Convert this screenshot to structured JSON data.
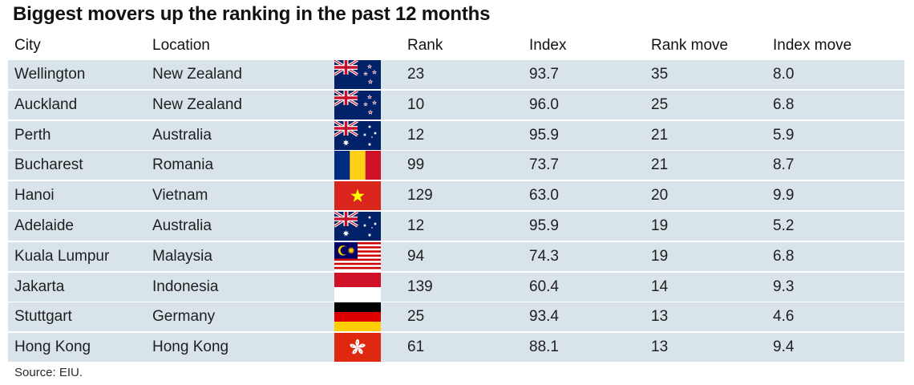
{
  "title": "Biggest movers up the ranking in the past 12 months",
  "source": "Source: EIU.",
  "columns": {
    "city": "City",
    "location": "Location",
    "rank": "Rank",
    "index": "Index",
    "rank_move": "Rank move",
    "index_move": "Index move"
  },
  "colors": {
    "row_bg": "#d8e3ea",
    "text": "#1f1f1f"
  },
  "chart_data": {
    "type": "table",
    "title": "Biggest movers up the ranking in the past 12 months",
    "columns": [
      "City",
      "Location",
      "Rank",
      "Index",
      "Rank move",
      "Index move"
    ],
    "rows": [
      {
        "city": "Wellington",
        "location": "New Zealand",
        "flag": "new-zealand-flag",
        "rank": "23",
        "index": "93.7",
        "rank_move": "35",
        "index_move": "8.0"
      },
      {
        "city": "Auckland",
        "location": "New Zealand",
        "flag": "new-zealand-flag",
        "rank": "10",
        "index": "96.0",
        "rank_move": "25",
        "index_move": "6.8"
      },
      {
        "city": "Perth",
        "location": "Australia",
        "flag": "australia-flag",
        "rank": "12",
        "index": "95.9",
        "rank_move": "21",
        "index_move": "5.9"
      },
      {
        "city": "Bucharest",
        "location": "Romania",
        "flag": "romania-flag",
        "rank": "99",
        "index": "73.7",
        "rank_move": "21",
        "index_move": "8.7"
      },
      {
        "city": "Hanoi",
        "location": "Vietnam",
        "flag": "vietnam-flag",
        "rank": "129",
        "index": "63.0",
        "rank_move": "20",
        "index_move": "9.9"
      },
      {
        "city": "Adelaide",
        "location": "Australia",
        "flag": "australia-flag",
        "rank": "12",
        "index": "95.9",
        "rank_move": "19",
        "index_move": "5.2"
      },
      {
        "city": "Kuala Lumpur",
        "location": "Malaysia",
        "flag": "malaysia-flag",
        "rank": "94",
        "index": "74.3",
        "rank_move": "19",
        "index_move": "6.8"
      },
      {
        "city": "Jakarta",
        "location": "Indonesia",
        "flag": "indonesia-flag",
        "rank": "139",
        "index": "60.4",
        "rank_move": "14",
        "index_move": "9.3"
      },
      {
        "city": "Stuttgart",
        "location": "Germany",
        "flag": "germany-flag",
        "rank": "25",
        "index": "93.4",
        "rank_move": "13",
        "index_move": "4.6"
      },
      {
        "city": "Hong Kong",
        "location": "Hong Kong",
        "flag": "hong-kong-flag",
        "rank": "61",
        "index": "88.1",
        "rank_move": "13",
        "index_move": "9.4"
      }
    ]
  }
}
